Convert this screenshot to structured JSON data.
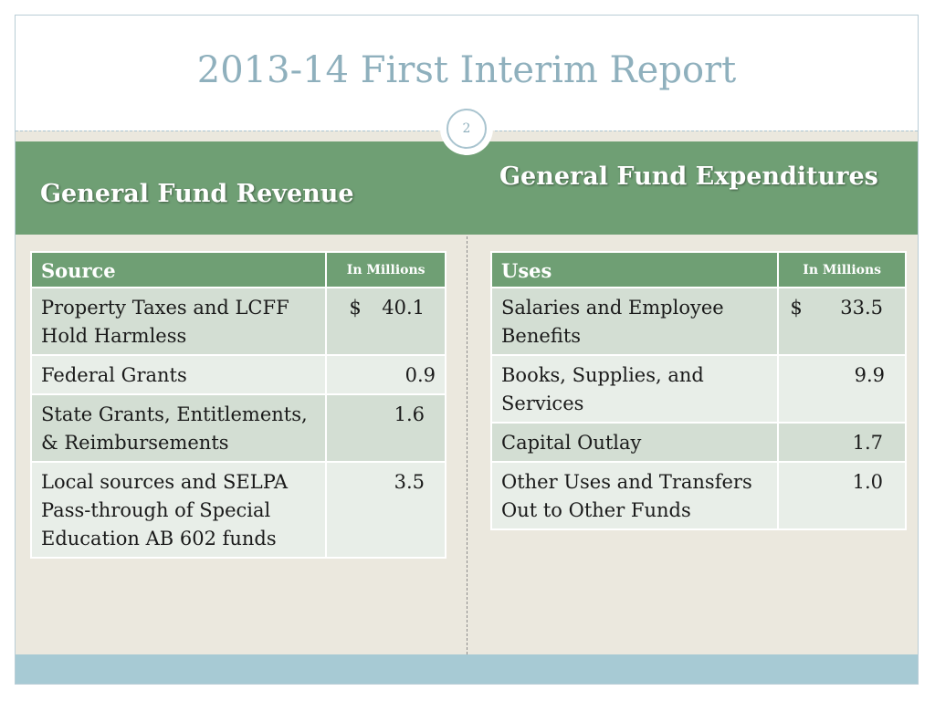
{
  "title": "2013-14 First Interim Report",
  "page_number": "2",
  "revenue": {
    "heading": "General Fund Revenue",
    "col_source": "Source",
    "col_amount": "In Millions",
    "rows": [
      {
        "label": "Property Taxes and LCFF Hold Harmless",
        "currency": "$",
        "amount": "40.1"
      },
      {
        "label": "Federal  Grants",
        "currency": "",
        "amount": "0.9"
      },
      {
        "label": "State  Grants, Entitlements,  & Reimbursements",
        "currency": "",
        "amount": "1.6"
      },
      {
        "label": "Local sources and SELPA Pass-through of Special Education AB 602 funds",
        "currency": "",
        "amount": "3.5"
      }
    ]
  },
  "expenditures": {
    "heading": "General Fund Expenditures",
    "col_uses": "Uses",
    "col_amount": "In Millions",
    "rows": [
      {
        "label": "Salaries and Employee Benefits",
        "currency": "$",
        "amount": "33.5"
      },
      {
        "label": "Books, Supplies, and Services",
        "currency": "",
        "amount": "9.9"
      },
      {
        "label": "Capital Outlay",
        "currency": "",
        "amount": "1.7"
      },
      {
        "label": "Other Uses and Transfers Out to Other Funds",
        "currency": "",
        "amount": "1.0"
      }
    ]
  }
}
